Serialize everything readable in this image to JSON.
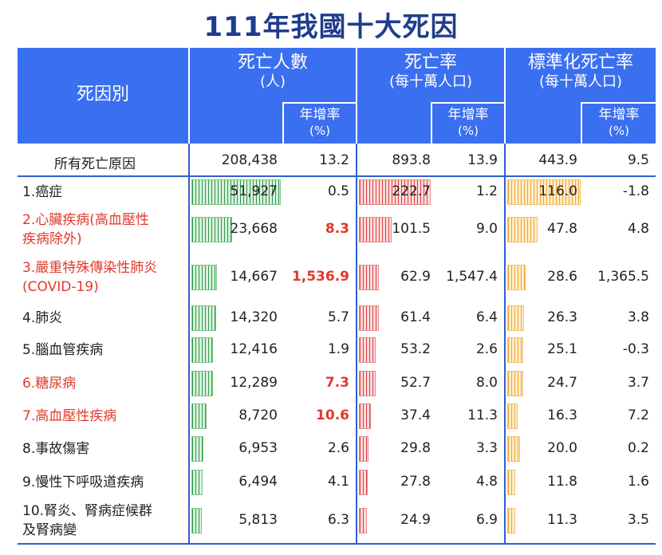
{
  "title": "111年我國十大死因",
  "headers": {
    "cause": "死因別",
    "deaths": "死亡人數",
    "deaths_unit": "(人)",
    "rate": "死亡率",
    "rate_unit": "(每十萬人口)",
    "std_rate": "標準化死亡率",
    "std_rate_unit": "(每十萬人口)",
    "growth": "年增率",
    "growth_unit": "(%)"
  },
  "total": {
    "name": "所有死亡原因",
    "deaths": "208,438",
    "deaths_growth": "13.2",
    "rate": "893.8",
    "rate_growth": "13.9",
    "std_rate": "443.9",
    "std_growth": "9.5"
  },
  "rows": [
    {
      "name1": "1.癌症",
      "name2": "",
      "red": false,
      "deaths": "51,927",
      "deaths_val": 51927,
      "dg": "0.5",
      "dg_red": false,
      "rate": "222.7",
      "rate_val": 222.7,
      "rg": "1.2",
      "std": "116.0",
      "std_val": 116.0,
      "sg": "-1.8"
    },
    {
      "name1": "2.心臟疾病(高血壓性",
      "name2": "疾病除外)",
      "red": true,
      "deaths": "23,668",
      "deaths_val": 23668,
      "dg": "8.3",
      "dg_red": true,
      "rate": "101.5",
      "rate_val": 101.5,
      "rg": "9.0",
      "std": "47.8",
      "std_val": 47.8,
      "sg": "4.8"
    },
    {
      "name1": "3.嚴重特殊傳染性肺炎",
      "name2": "(COVID-19)",
      "red": true,
      "deaths": "14,667",
      "deaths_val": 14667,
      "dg": "1,536.9",
      "dg_red": true,
      "rate": "62.9",
      "rate_val": 62.9,
      "rg": "1,547.4",
      "std": "28.6",
      "std_val": 28.6,
      "sg": "1,365.5"
    },
    {
      "name1": "4.肺炎",
      "name2": "",
      "red": false,
      "deaths": "14,320",
      "deaths_val": 14320,
      "dg": "5.7",
      "dg_red": false,
      "rate": "61.4",
      "rate_val": 61.4,
      "rg": "6.4",
      "std": "26.3",
      "std_val": 26.3,
      "sg": "3.8"
    },
    {
      "name1": "5.腦血管疾病",
      "name2": "",
      "red": false,
      "deaths": "12,416",
      "deaths_val": 12416,
      "dg": "1.9",
      "dg_red": false,
      "rate": "53.2",
      "rate_val": 53.2,
      "rg": "2.6",
      "std": "25.1",
      "std_val": 25.1,
      "sg": "-0.3"
    },
    {
      "name1": "6.糖尿病",
      "name2": "",
      "red": true,
      "deaths": "12,289",
      "deaths_val": 12289,
      "dg": "7.3",
      "dg_red": true,
      "rate": "52.7",
      "rate_val": 52.7,
      "rg": "8.0",
      "std": "24.7",
      "std_val": 24.7,
      "sg": "3.7"
    },
    {
      "name1": "7.高血壓性疾病",
      "name2": "",
      "red": true,
      "deaths": "8,720",
      "deaths_val": 8720,
      "dg": "10.6",
      "dg_red": true,
      "rate": "37.4",
      "rate_val": 37.4,
      "rg": "11.3",
      "std": "16.3",
      "std_val": 16.3,
      "sg": "7.2"
    },
    {
      "name1": "8.事故傷害",
      "name2": "",
      "red": false,
      "deaths": "6,953",
      "deaths_val": 6953,
      "dg": "2.6",
      "dg_red": false,
      "rate": "29.8",
      "rate_val": 29.8,
      "rg": "3.3",
      "std": "20.0",
      "std_val": 20.0,
      "sg": "0.2"
    },
    {
      "name1": "9.慢性下呼吸道疾病",
      "name2": "",
      "red": false,
      "deaths": "6,494",
      "deaths_val": 6494,
      "dg": "4.1",
      "dg_red": false,
      "rate": "27.8",
      "rate_val": 27.8,
      "rg": "4.8",
      "std": "11.8",
      "std_val": 11.8,
      "sg": "1.6"
    },
    {
      "name1": "10.腎炎、腎病症候群",
      "name2": "及腎病變",
      "red": false,
      "deaths": "5,813",
      "deaths_val": 5813,
      "dg": "6.3",
      "dg_red": false,
      "rate": "24.9",
      "rate_val": 24.9,
      "rg": "6.9",
      "std": "11.3",
      "std_val": 11.3,
      "sg": "3.5"
    }
  ],
  "colors": {
    "header": "#3a6ff0",
    "title": "#1f3d8c",
    "red_text": "#e03a2c",
    "bar_green": "#2e9c48",
    "bar_red": "#e03d3d",
    "bar_orange": "#f2a62b"
  }
}
